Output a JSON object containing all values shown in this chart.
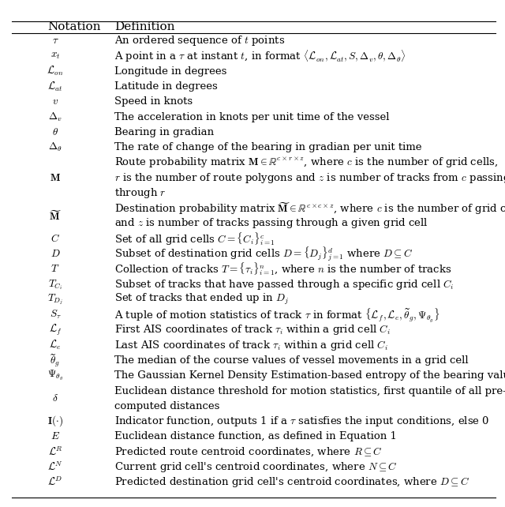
{
  "title_notation": "Notation",
  "title_definition": "Definition",
  "rows": [
    {
      "notation": "$\\tau$",
      "definition": [
        "An ordered sequence of $t$ points"
      ],
      "multiline": false
    },
    {
      "notation": "$x_t$",
      "definition": [
        "A point in a $\\tau$ at instant $t$, in format $\\langle\\mathcal{L}_{on}, \\mathcal{L}_{at}, S, \\Delta_v, \\theta, \\Delta_\\theta\\rangle$"
      ],
      "multiline": false
    },
    {
      "notation": "$\\mathcal{L}_{on}$",
      "definition": [
        "Longitude in degrees"
      ],
      "multiline": false
    },
    {
      "notation": "$\\mathcal{L}_{at}$",
      "definition": [
        "Latitude in degrees"
      ],
      "multiline": false
    },
    {
      "notation": "$v$",
      "definition": [
        "Speed in knots"
      ],
      "multiline": false
    },
    {
      "notation": "$\\Delta_v$",
      "definition": [
        "The acceleration in knots per unit time of the vessel"
      ],
      "multiline": false
    },
    {
      "notation": "$\\theta$",
      "definition": [
        "Bearing in gradian"
      ],
      "multiline": false
    },
    {
      "notation": "$\\Delta_\\theta$",
      "definition": [
        "The rate of change of the bearing in gradian per unit time"
      ],
      "multiline": false
    },
    {
      "notation": "$\\mathbf{M}$",
      "definition": [
        "Route probability matrix $\\mathbf{M} \\in \\mathbb{R}^{c\\times r\\times z}$, where $c$ is the number of grid cells,",
        "$r$ is the number of route polygons and $z$ is number of tracks from $c$ passing",
        "through $r$"
      ],
      "multiline": true
    },
    {
      "notation": "$\\widetilde{\\mathbf{M}}$",
      "definition": [
        "Destination probability matrix $\\widetilde{\\mathbf{M}} \\in \\mathbb{R}^{c\\times c\\times z}$, where $c$ is the number of grid cells",
        "and $z$ is number of tracks passing through a given grid cell"
      ],
      "multiline": true
    },
    {
      "notation": "$C$",
      "definition": [
        "Set of all grid cells $C = \\{C_i\\}_{i=1}^{c}$"
      ],
      "multiline": false
    },
    {
      "notation": "$D$",
      "definition": [
        "Subset of destination grid cells $D = \\{D_j\\}_{j=1}^{d}$ where $D \\subseteq C$"
      ],
      "multiline": false
    },
    {
      "notation": "$T$",
      "definition": [
        "Collection of tracks $T = \\{\\tau_i\\}_{i=1}^{n}$, where $n$ is the number of tracks"
      ],
      "multiline": false
    },
    {
      "notation": "$T_{C_i}$",
      "definition": [
        "Subset of tracks that have passed through a specific grid cell $C_i$"
      ],
      "multiline": false
    },
    {
      "notation": "$T_{D_j}$",
      "definition": [
        "Set of tracks that ended up in $D_j$"
      ],
      "multiline": false
    },
    {
      "notation": "$S_\\tau$",
      "definition": [
        "A tuple of motion statistics of track $\\tau$ in format $\\{\\mathcal{L}_f, \\mathcal{L}_e, \\widetilde{\\theta}_g, \\Psi_{\\theta_g}\\}$"
      ],
      "multiline": false
    },
    {
      "notation": "$\\mathcal{L}_f$",
      "definition": [
        "First AIS coordinates of track $\\tau_i$ within a grid cell $C_i$"
      ],
      "multiline": false
    },
    {
      "notation": "$\\mathcal{L}_e$",
      "definition": [
        "Last AIS coordinates of track $\\tau_i$ within a grid cell $C_i$"
      ],
      "multiline": false
    },
    {
      "notation": "$\\widetilde{\\theta}_g$",
      "definition": [
        "The median of the course values of vessel movements in a grid cell"
      ],
      "multiline": false
    },
    {
      "notation": "$\\Psi_{\\theta_g}$",
      "definition": [
        "The Gaussian Kernel Density Estimation-based entropy of the bearing values"
      ],
      "multiline": false
    },
    {
      "notation": "$\\delta$",
      "definition": [
        "Euclidean distance threshold for motion statistics, first quantile of all pre-",
        "computed distances"
      ],
      "multiline": true
    },
    {
      "notation": "$\\mathbf{I}(\\cdot)$",
      "definition": [
        "Indicator function, outputs 1 if a $\\tau$ satisfies the input conditions, else 0"
      ],
      "multiline": false
    },
    {
      "notation": "$E$",
      "definition": [
        "Euclidean distance function, as defined in Equation 1"
      ],
      "multiline": false
    },
    {
      "notation": "$\\mathcal{L}^R$",
      "definition": [
        "Predicted route centroid coordinates, where $R \\subseteq C$"
      ],
      "multiline": false
    },
    {
      "notation": "$\\mathcal{L}^N$",
      "definition": [
        "Current grid cell's centroid coordinates, where $N \\subseteq C$"
      ],
      "multiline": false
    },
    {
      "notation": "$\\mathcal{L}^D$",
      "definition": [
        "Predicted destination grid cell's centroid coordinates, where $D \\subseteq C$"
      ],
      "multiline": false
    }
  ],
  "bg_color": "#ffffff",
  "text_color": "#000000",
  "line_color": "#000000",
  "fig_width": 6.4,
  "fig_height": 6.42,
  "dpi": 100
}
